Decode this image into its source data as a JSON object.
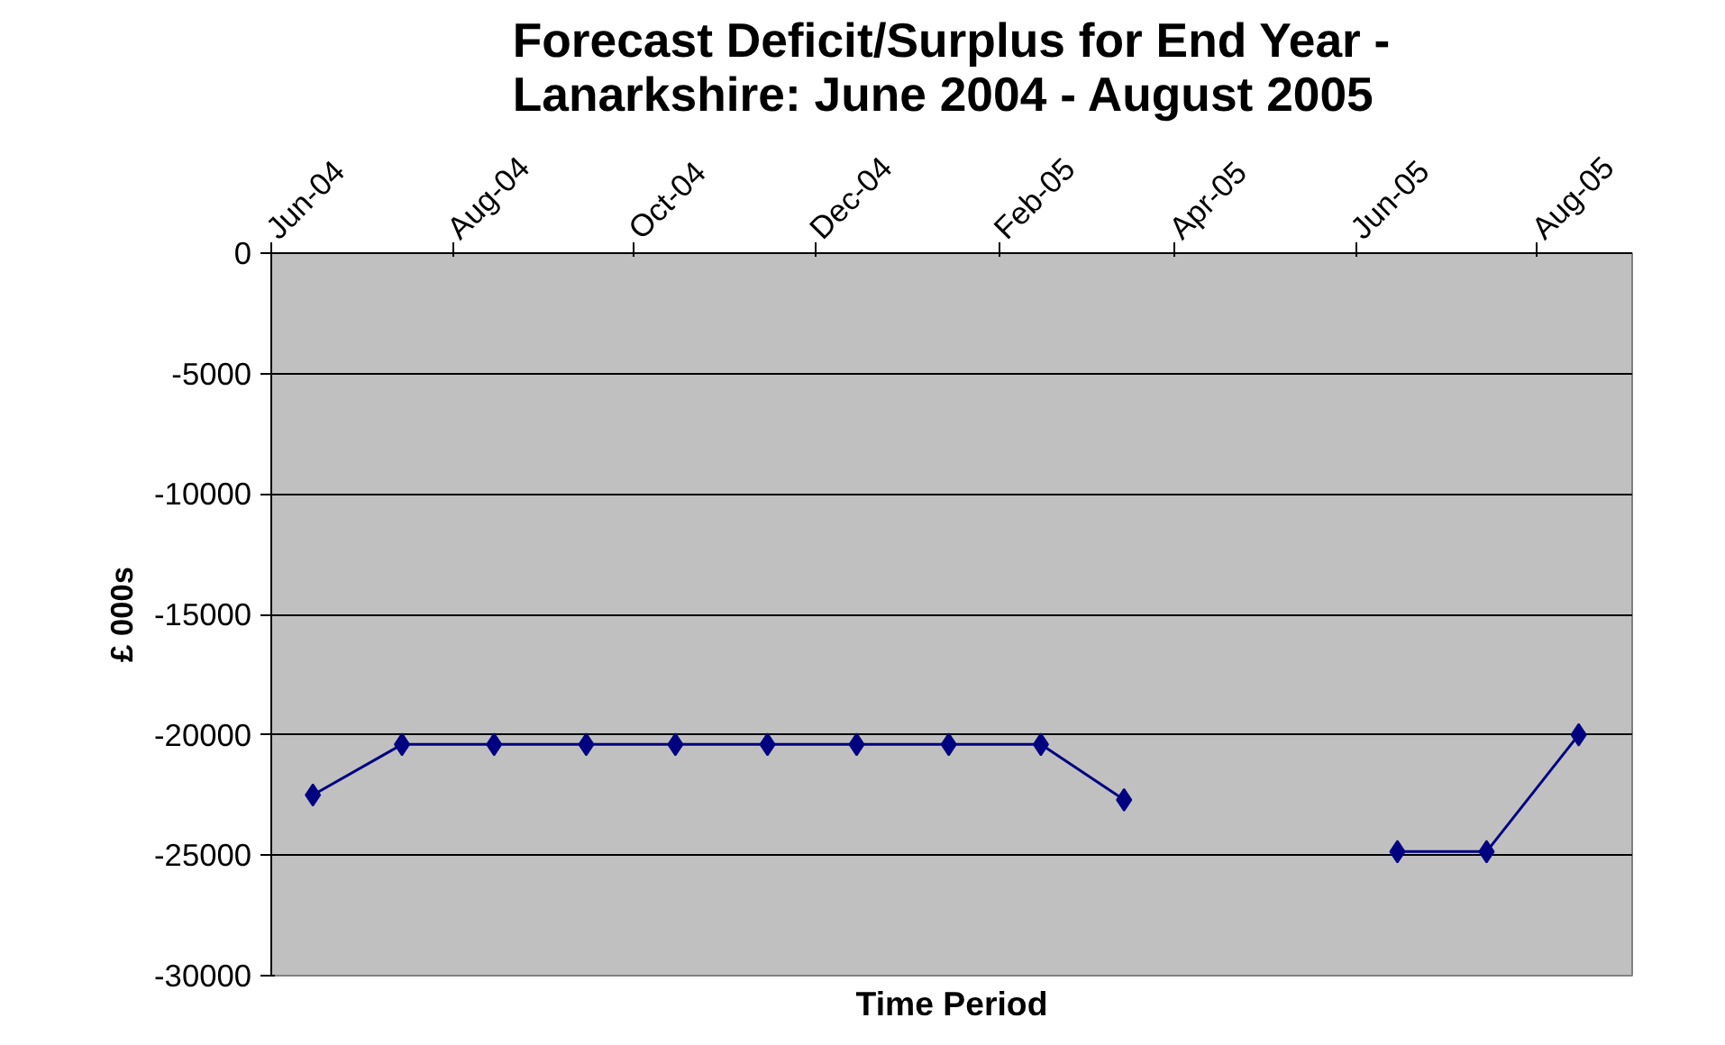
{
  "chart_data": {
    "type": "line",
    "title": "Forecast Deficit/Surplus for End Year -\nLanarkshire: June 2004 - August 2005",
    "xlabel": "Time Period",
    "ylabel": "£ 000s",
    "x": [
      "2004-06-15",
      "2004-07-15",
      "2004-08-15",
      "2004-09-15",
      "2004-10-15",
      "2004-11-15",
      "2004-12-15",
      "2005-01-15",
      "2005-02-15",
      "2005-03-15",
      "2005-04-15",
      "2005-05-15",
      "2005-06-15",
      "2005-07-15",
      "2005-08-15"
    ],
    "series": [
      {
        "color": "#000080",
        "values": [
          -22500,
          -20400,
          -20400,
          -20400,
          -20400,
          -20400,
          -20400,
          -20400,
          -20400,
          -22700,
          null,
          null,
          -24850,
          -24850,
          -20000
        ]
      }
    ],
    "xlim": [
      "2004-06-01",
      "2005-09-02"
    ],
    "xticks": [
      {
        "value": "2004-06-01",
        "label": "Jun-04"
      },
      {
        "value": "2004-08-01",
        "label": "Aug-04"
      },
      {
        "value": "2004-10-01",
        "label": "Oct-04"
      },
      {
        "value": "2004-12-01",
        "label": "Dec-04"
      },
      {
        "value": "2005-02-01",
        "label": "Feb-05"
      },
      {
        "value": "2005-04-01",
        "label": "Apr-05"
      },
      {
        "value": "2005-06-01",
        "label": "Jun-05"
      },
      {
        "value": "2005-08-01",
        "label": "Aug-05"
      }
    ],
    "ylim": [
      -30000,
      0
    ],
    "yticks": [
      0,
      -5000,
      -10000,
      -15000,
      -20000,
      -25000,
      -30000
    ],
    "grid": "y",
    "marker": "diamond",
    "line_style": "solid"
  }
}
